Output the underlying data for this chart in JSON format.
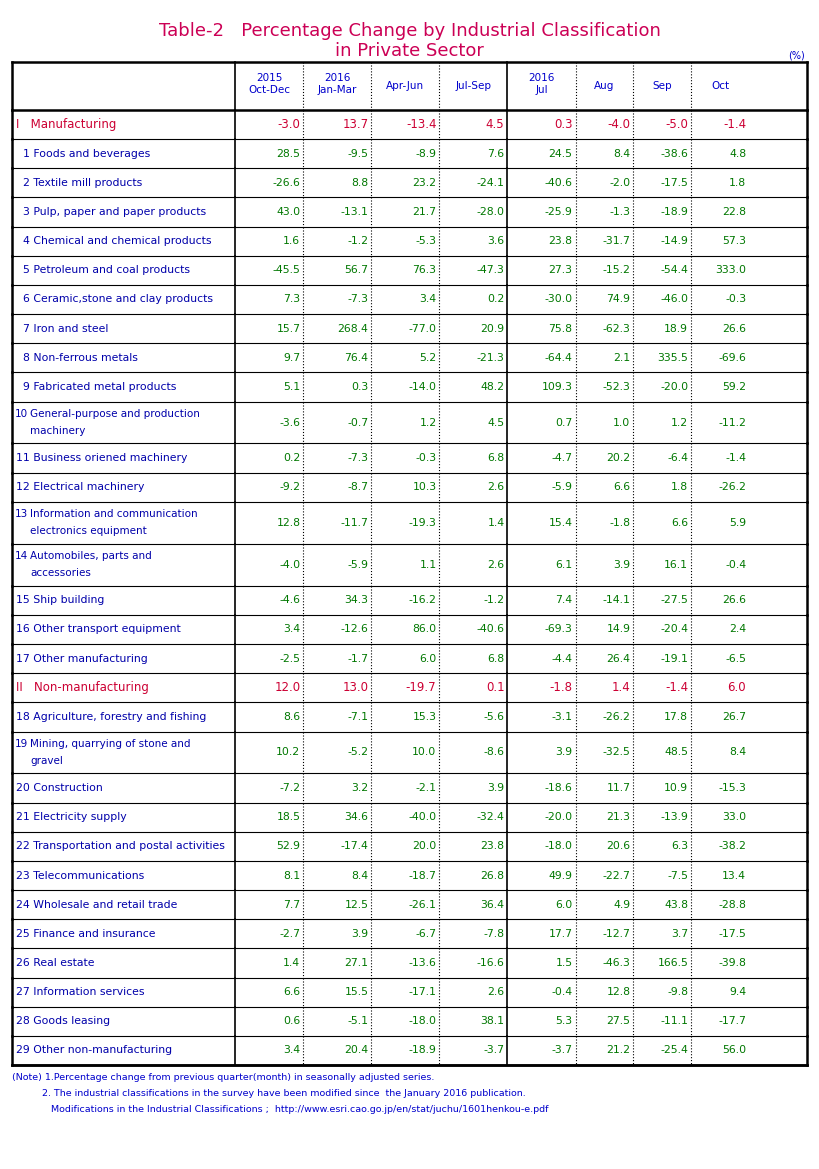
{
  "title_line1": "Table-2   Percentage Change by Industrial Classification",
  "title_line2": "in Private Sector",
  "title_color": "#cc0055",
  "header_color": "#0000cc",
  "data_color_green": "#007700",
  "data_color_red": "#cc0033",
  "label_color": "#0000aa",
  "note_color": "#0000cc",
  "rows": [
    {
      "label": "I   Manufacturing",
      "num": "",
      "values": [
        "-3.0",
        "13.7",
        "-13.4",
        "4.5",
        "0.3",
        "-4.0",
        "-5.0",
        "-1.4"
      ],
      "style": "category",
      "multiline": false
    },
    {
      "label": "  1 Foods and beverages",
      "num": "",
      "values": [
        "28.5",
        "-9.5",
        "-8.9",
        "7.6",
        "24.5",
        "8.4",
        "-38.6",
        "4.8"
      ],
      "style": "normal",
      "multiline": false
    },
    {
      "label": "  2 Textile mill products",
      "num": "",
      "values": [
        "-26.6",
        "8.8",
        "23.2",
        "-24.1",
        "-40.6",
        "-2.0",
        "-17.5",
        "1.8"
      ],
      "style": "normal",
      "multiline": false
    },
    {
      "label": "  3 Pulp, paper and paper products",
      "num": "",
      "values": [
        "43.0",
        "-13.1",
        "21.7",
        "-28.0",
        "-25.9",
        "-1.3",
        "-18.9",
        "22.8"
      ],
      "style": "normal",
      "multiline": false
    },
    {
      "label": "  4 Chemical and chemical products",
      "num": "",
      "values": [
        "1.6",
        "-1.2",
        "-5.3",
        "3.6",
        "23.8",
        "-31.7",
        "-14.9",
        "57.3"
      ],
      "style": "normal",
      "multiline": false
    },
    {
      "label": "  5 Petroleum and coal products",
      "num": "",
      "values": [
        "-45.5",
        "56.7",
        "76.3",
        "-47.3",
        "27.3",
        "-15.2",
        "-54.4",
        "333.0"
      ],
      "style": "normal",
      "multiline": false
    },
    {
      "label": "  6 Ceramic,stone and clay products",
      "num": "",
      "values": [
        "7.3",
        "-7.3",
        "3.4",
        "0.2",
        "-30.0",
        "74.9",
        "-46.0",
        "-0.3"
      ],
      "style": "normal",
      "multiline": false
    },
    {
      "label": "  7 Iron and steel",
      "num": "",
      "values": [
        "15.7",
        "268.4",
        "-77.0",
        "20.9",
        "75.8",
        "-62.3",
        "18.9",
        "26.6"
      ],
      "style": "normal",
      "multiline": false
    },
    {
      "label": "  8 Non-ferrous metals",
      "num": "",
      "values": [
        "9.7",
        "76.4",
        "5.2",
        "-21.3",
        "-64.4",
        "2.1",
        "335.5",
        "-69.6"
      ],
      "style": "normal",
      "multiline": false
    },
    {
      "label": "  9 Fabricated metal products",
      "num": "",
      "values": [
        "5.1",
        "0.3",
        "-14.0",
        "48.2",
        "109.3",
        "-52.3",
        "-20.0",
        "59.2"
      ],
      "style": "normal",
      "multiline": false
    },
    {
      "label": "General-purpose and production\nmachinery",
      "num": "10",
      "values": [
        "-3.6",
        "-0.7",
        "1.2",
        "4.5",
        "0.7",
        "1.0",
        "1.2",
        "-11.2"
      ],
      "style": "normal",
      "multiline": true
    },
    {
      "label": "11 Business oriened machinery",
      "num": "",
      "values": [
        "0.2",
        "-7.3",
        "-0.3",
        "6.8",
        "-4.7",
        "20.2",
        "-6.4",
        "-1.4"
      ],
      "style": "normal",
      "multiline": false
    },
    {
      "label": "12 Electrical machinery",
      "num": "",
      "values": [
        "-9.2",
        "-8.7",
        "10.3",
        "2.6",
        "-5.9",
        "6.6",
        "1.8",
        "-26.2"
      ],
      "style": "normal",
      "multiline": false
    },
    {
      "label": "Information and communication\nelectronics equipment",
      "num": "13",
      "values": [
        "12.8",
        "-11.7",
        "-19.3",
        "1.4",
        "15.4",
        "-1.8",
        "6.6",
        "5.9"
      ],
      "style": "normal",
      "multiline": true
    },
    {
      "label": "Automobiles, parts and\naccessories",
      "num": "14",
      "values": [
        "-4.0",
        "-5.9",
        "1.1",
        "2.6",
        "6.1",
        "3.9",
        "16.1",
        "-0.4"
      ],
      "style": "normal",
      "multiline": true
    },
    {
      "label": "15 Ship building",
      "num": "",
      "values": [
        "-4.6",
        "34.3",
        "-16.2",
        "-1.2",
        "7.4",
        "-14.1",
        "-27.5",
        "26.6"
      ],
      "style": "normal",
      "multiline": false
    },
    {
      "label": "16 Other transport equipment",
      "num": "",
      "values": [
        "3.4",
        "-12.6",
        "86.0",
        "-40.6",
        "-69.3",
        "14.9",
        "-20.4",
        "2.4"
      ],
      "style": "normal",
      "multiline": false
    },
    {
      "label": "17 Other manufacturing",
      "num": "",
      "values": [
        "-2.5",
        "-1.7",
        "6.0",
        "6.8",
        "-4.4",
        "26.4",
        "-19.1",
        "-6.5"
      ],
      "style": "normal",
      "multiline": false
    },
    {
      "label": "II   Non-manufacturing",
      "num": "",
      "values": [
        "12.0",
        "13.0",
        "-19.7",
        "0.1",
        "-1.8",
        "1.4",
        "-1.4",
        "6.0"
      ],
      "style": "category",
      "multiline": false
    },
    {
      "label": "18 Agriculture, forestry and fishing",
      "num": "",
      "values": [
        "8.6",
        "-7.1",
        "15.3",
        "-5.6",
        "-3.1",
        "-26.2",
        "17.8",
        "26.7"
      ],
      "style": "normal",
      "multiline": false
    },
    {
      "label": "Mining, quarrying of stone and\ngravel",
      "num": "19",
      "values": [
        "10.2",
        "-5.2",
        "10.0",
        "-8.6",
        "3.9",
        "-32.5",
        "48.5",
        "8.4"
      ],
      "style": "normal",
      "multiline": true
    },
    {
      "label": "20 Construction",
      "num": "",
      "values": [
        "-7.2",
        "3.2",
        "-2.1",
        "3.9",
        "-18.6",
        "11.7",
        "10.9",
        "-15.3"
      ],
      "style": "normal",
      "multiline": false
    },
    {
      "label": "21 Electricity supply",
      "num": "",
      "values": [
        "18.5",
        "34.6",
        "-40.0",
        "-32.4",
        "-20.0",
        "21.3",
        "-13.9",
        "33.0"
      ],
      "style": "normal",
      "multiline": false
    },
    {
      "label": "22 Transportation and postal activities",
      "num": "",
      "values": [
        "52.9",
        "-17.4",
        "20.0",
        "23.8",
        "-18.0",
        "20.6",
        "6.3",
        "-38.2"
      ],
      "style": "normal",
      "multiline": false
    },
    {
      "label": "23 Telecommunications",
      "num": "",
      "values": [
        "8.1",
        "8.4",
        "-18.7",
        "26.8",
        "49.9",
        "-22.7",
        "-7.5",
        "13.4"
      ],
      "style": "normal",
      "multiline": false
    },
    {
      "label": "24 Wholesale and retail trade",
      "num": "",
      "values": [
        "7.7",
        "12.5",
        "-26.1",
        "36.4",
        "6.0",
        "4.9",
        "43.8",
        "-28.8"
      ],
      "style": "normal",
      "multiline": false
    },
    {
      "label": "25 Finance and insurance",
      "num": "",
      "values": [
        "-2.7",
        "3.9",
        "-6.7",
        "-7.8",
        "17.7",
        "-12.7",
        "3.7",
        "-17.5"
      ],
      "style": "normal",
      "multiline": false
    },
    {
      "label": "26 Real estate",
      "num": "",
      "values": [
        "1.4",
        "27.1",
        "-13.6",
        "-16.6",
        "1.5",
        "-46.3",
        "166.5",
        "-39.8"
      ],
      "style": "normal",
      "multiline": false
    },
    {
      "label": "27 Information services",
      "num": "",
      "values": [
        "6.6",
        "15.5",
        "-17.1",
        "2.6",
        "-0.4",
        "12.8",
        "-9.8",
        "9.4"
      ],
      "style": "normal",
      "multiline": false
    },
    {
      "label": "28 Goods leasing",
      "num": "",
      "values": [
        "0.6",
        "-5.1",
        "-18.0",
        "38.1",
        "5.3",
        "27.5",
        "-11.1",
        "-17.7"
      ],
      "style": "normal",
      "multiline": false
    },
    {
      "label": "29 Other non-manufacturing",
      "num": "",
      "values": [
        "3.4",
        "20.4",
        "-18.9",
        "-3.7",
        "-3.7",
        "21.2",
        "-25.4",
        "56.0"
      ],
      "style": "normal",
      "multiline": false
    }
  ],
  "notes": [
    "(Note) 1.Percentage change from previous quarter(month) in seasonally adjusted series.",
    "          2. The industrial classifications in the survey have been modified since  the January 2016 publication.",
    "             Modifications in the Industrial Classifications ;  http://www.esri.cao.go.jp/en/stat/juchu/1601henkou-e.pdf"
  ]
}
